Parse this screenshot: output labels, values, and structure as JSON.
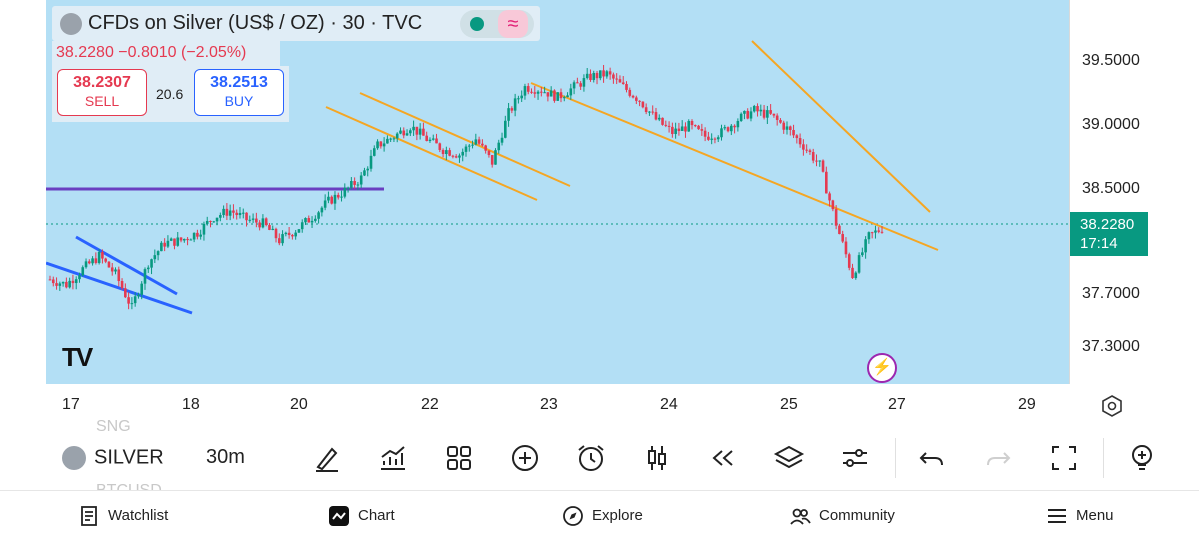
{
  "legend": {
    "title": "CFDs on Silver (US$ / OZ) · 30 · TVC",
    "change": "38.2280 −0.8010 (−2.05%)",
    "wave_glyph": "≈"
  },
  "trade": {
    "sell_price": "38.2307",
    "sell_label": "SELL",
    "spread": "20.6",
    "buy_price": "38.2513",
    "buy_label": "BUY"
  },
  "price_axis": {
    "labels": [
      "39.5000",
      "39.0000",
      "38.5000",
      "37.7000",
      "37.3000"
    ],
    "current_price": "38.2280",
    "countdown": "17:14",
    "current_color": "#089981"
  },
  "time_axis": {
    "labels": [
      "17",
      "18",
      "20",
      "22",
      "23",
      "24",
      "25",
      "27",
      "29"
    ]
  },
  "chart_data": {
    "type": "candlestick",
    "xlabel": "",
    "ylabel": "",
    "x_ticks": [
      "17",
      "18",
      "20",
      "22",
      "23",
      "24",
      "25",
      "27",
      "29"
    ],
    "y_ticks": [
      39.5,
      39.0,
      38.5,
      37.7,
      37.3
    ],
    "ylim": [
      37.1,
      39.6
    ],
    "last_price": 38.228,
    "series_closes": [
      37.82,
      37.78,
      37.9,
      38.0,
      37.86,
      37.6,
      37.95,
      38.1,
      38.12,
      38.18,
      38.3,
      38.35,
      38.28,
      38.25,
      38.12,
      38.2,
      38.3,
      38.42,
      38.5,
      38.6,
      38.85,
      38.92,
      39.0,
      38.9,
      38.82,
      38.78,
      38.9,
      38.72,
      39.1,
      39.3,
      39.28,
      39.22,
      39.3,
      39.38,
      39.4,
      39.3,
      39.2,
      39.05,
      38.95,
      39.0,
      38.92,
      38.95,
      39.05,
      39.12,
      39.08,
      38.98,
      38.85,
      38.7,
      38.25,
      37.85,
      38.15,
      38.23
    ],
    "trendlines_color": "#f5a623",
    "resistance_color": "#6a3fc1",
    "wedge_color": "#2962ff"
  },
  "toolbar": {
    "symbol_prev": "SNG",
    "symbol": "SILVER",
    "symbol_next": "BTCUSD",
    "interval": "30m"
  },
  "icons": {
    "settings": "hexagon-gear-icon",
    "flash": "lightning-icon"
  },
  "nav": {
    "watchlist": "Watchlist",
    "chart": "Chart",
    "explore": "Explore",
    "community": "Community",
    "menu": "Menu"
  }
}
